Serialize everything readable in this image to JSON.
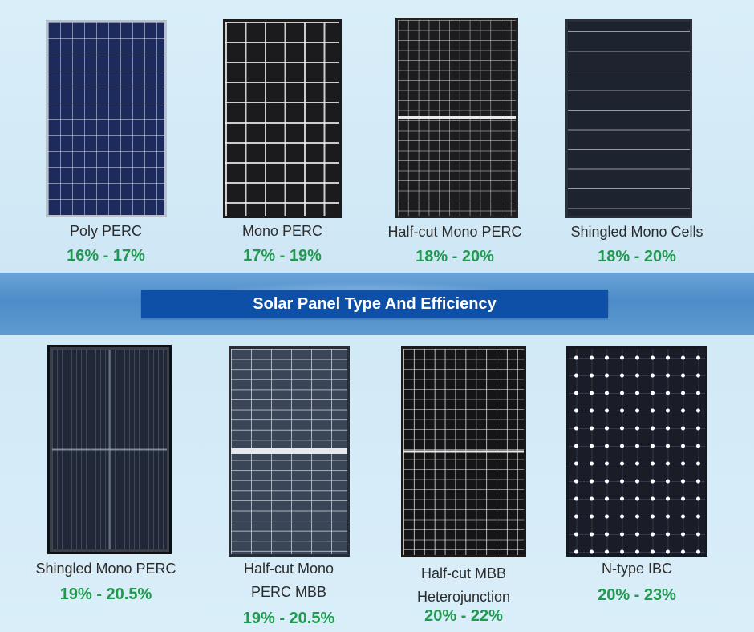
{
  "title": "Solar Panel Type And Efficiency",
  "panels": [
    {
      "label": "Poly PERC",
      "efficiency": "16% - 17%"
    },
    {
      "label": "Mono PERC",
      "efficiency": "17% - 19%"
    },
    {
      "label": "Half-cut Mono PERC",
      "efficiency": "18% - 20%"
    },
    {
      "label": "Shingled Mono Cells",
      "efficiency": "18% - 20%"
    },
    {
      "label": "Shingled Mono PERC",
      "efficiency": "19% - 20.5%"
    },
    {
      "label_line1": "Half-cut Mono",
      "label_line2": "PERC MBB",
      "efficiency": "19% - 20.5%"
    },
    {
      "label_line1": "Half-cut MBB",
      "label_line2": "Heterojunction",
      "efficiency": "20% - 22%"
    },
    {
      "label": "N-type IBC",
      "efficiency": "20% - 23%"
    }
  ],
  "colors": {
    "background": "#d6ebf7",
    "title_bar": "#0e50a8",
    "efficiency_text": "#1f9a4e"
  }
}
